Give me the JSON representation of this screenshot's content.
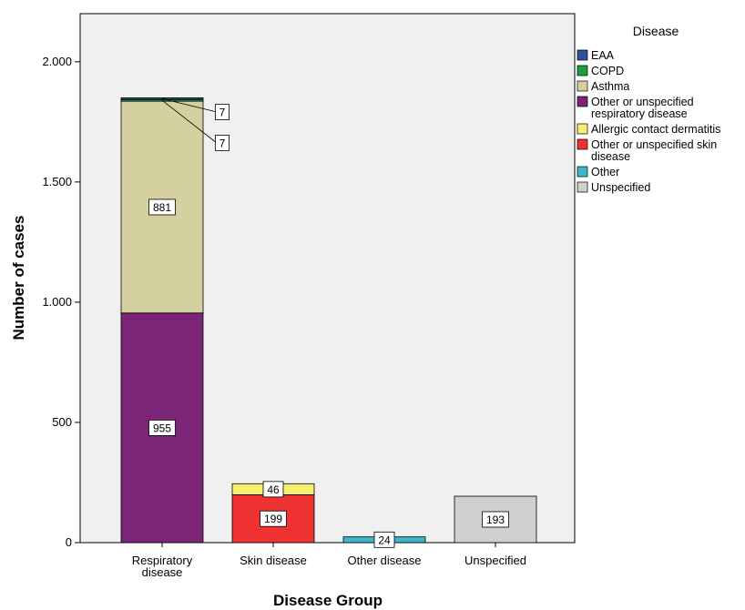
{
  "chart_data": {
    "type": "bar",
    "stacked": true,
    "xlabel": "Disease Group",
    "ylabel": "Number of cases",
    "ylim": [
      0,
      2200
    ],
    "yticks": [
      0,
      500,
      1000,
      1500,
      2000
    ],
    "ytick_labels": [
      "0",
      "500",
      "1.000",
      "1.500",
      "2.000"
    ],
    "categories": [
      "Respiratory disease",
      "Skin disease",
      "Other disease",
      "Unspecified"
    ],
    "legend_title": "Disease",
    "legend_position": "right",
    "grid": false,
    "series": [
      {
        "name": "EAA",
        "color": "#2f4fa0",
        "values": [
          7,
          0,
          0,
          0
        ]
      },
      {
        "name": "COPD",
        "color": "#1e9e3a",
        "values": [
          7,
          0,
          0,
          0
        ]
      },
      {
        "name": "Asthma",
        "color": "#d4d0a0",
        "values": [
          881,
          0,
          0,
          0
        ]
      },
      {
        "name": "Other or unspecified respiratory disease",
        "color": "#7a2577",
        "values": [
          955,
          0,
          0,
          0
        ]
      },
      {
        "name": "Allergic contact dermatitis",
        "color": "#f4ef6e",
        "values": [
          0,
          46,
          0,
          0
        ]
      },
      {
        "name": "Other or unspecified skin disease",
        "color": "#ee3232",
        "values": [
          0,
          199,
          0,
          0
        ]
      },
      {
        "name": "Other",
        "color": "#3bb7c7",
        "values": [
          0,
          0,
          24,
          0
        ]
      },
      {
        "name": "Unspecified",
        "color": "#cfcfcf",
        "values": [
          0,
          0,
          0,
          193
        ]
      }
    ],
    "data_labels": [
      {
        "category": 0,
        "series": "Other or unspecified respiratory disease",
        "text": "955"
      },
      {
        "category": 0,
        "series": "Asthma",
        "text": "881"
      },
      {
        "category": 0,
        "series": "COPD",
        "text": "7"
      },
      {
        "category": 0,
        "series": "EAA",
        "text": "7"
      },
      {
        "category": 1,
        "series": "Other or unspecified skin disease",
        "text": "199"
      },
      {
        "category": 1,
        "series": "Allergic contact dermatitis",
        "text": "46"
      },
      {
        "category": 2,
        "series": "Other",
        "text": "24"
      },
      {
        "category": 3,
        "series": "Unspecified",
        "text": "193"
      }
    ]
  }
}
